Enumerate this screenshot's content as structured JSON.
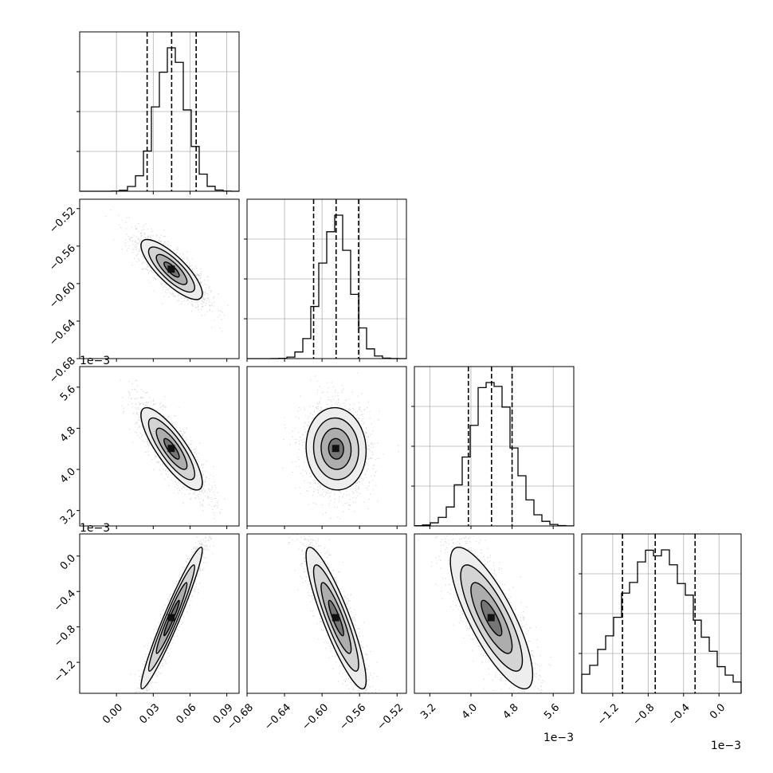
{
  "chart_data": {
    "type": "corner",
    "parameters": [
      {
        "range": [
          -0.03,
          0.1
        ],
        "ticks": [
          0.0,
          0.03,
          0.06,
          0.09
        ],
        "tick_labels": [
          "0.00",
          "0.03",
          "0.06",
          "0.09"
        ],
        "offset_text": "",
        "mean": 0.045,
        "std": 0.0125,
        "quantiles": [
          0.025,
          0.045,
          0.065
        ]
      },
      {
        "range": [
          -0.68,
          -0.51
        ],
        "ticks": [
          -0.68,
          -0.64,
          -0.6,
          -0.56,
          -0.52
        ],
        "tick_labels": [
          "−0.68",
          "−0.64",
          "−0.60",
          "−0.56",
          "−0.52"
        ],
        "offset_text": "",
        "mean": -0.585,
        "std": 0.016,
        "quantiles": [
          -0.609,
          -0.585,
          -0.561
        ]
      },
      {
        "range": [
          2.9,
          6.0
        ],
        "ticks": [
          3.2,
          4.0,
          4.8,
          5.6
        ],
        "tick_labels": [
          "3.2",
          "4.0",
          "4.8",
          "5.6"
        ],
        "offset_text": "1e−3",
        "mean": 4.4,
        "std": 0.4,
        "quantiles": [
          3.95,
          4.4,
          4.8
        ]
      },
      {
        "range": [
          -1.55,
          0.25
        ],
        "ticks": [
          -1.2,
          -0.8,
          -0.4,
          0.0
        ],
        "tick_labels": [
          "−1.2",
          "−0.8",
          "−0.4",
          "0.0"
        ],
        "offset_text": "1e−3",
        "mean": -0.7,
        "std": 0.4,
        "quantiles": [
          -1.09,
          -0.72,
          -0.27
        ]
      }
    ],
    "pairs": [
      {
        "row": 1,
        "col": 0,
        "corr": -0.8
      },
      {
        "row": 2,
        "col": 0,
        "corr": -0.82
      },
      {
        "row": 2,
        "col": 1,
        "corr": -0.05
      },
      {
        "row": 3,
        "col": 0,
        "corr": 0.96
      },
      {
        "row": 3,
        "col": 1,
        "corr": -0.88
      },
      {
        "row": 3,
        "col": 2,
        "corr": -0.8
      }
    ],
    "contour_levels_sigma": [
      0.5,
      1.0,
      1.5,
      2.0
    ],
    "hist_bins": 20,
    "grid": true,
    "colors": {
      "points": "#999999",
      "hist": "#000000",
      "contour": "#000000",
      "grid": "#b0b0b0"
    }
  }
}
